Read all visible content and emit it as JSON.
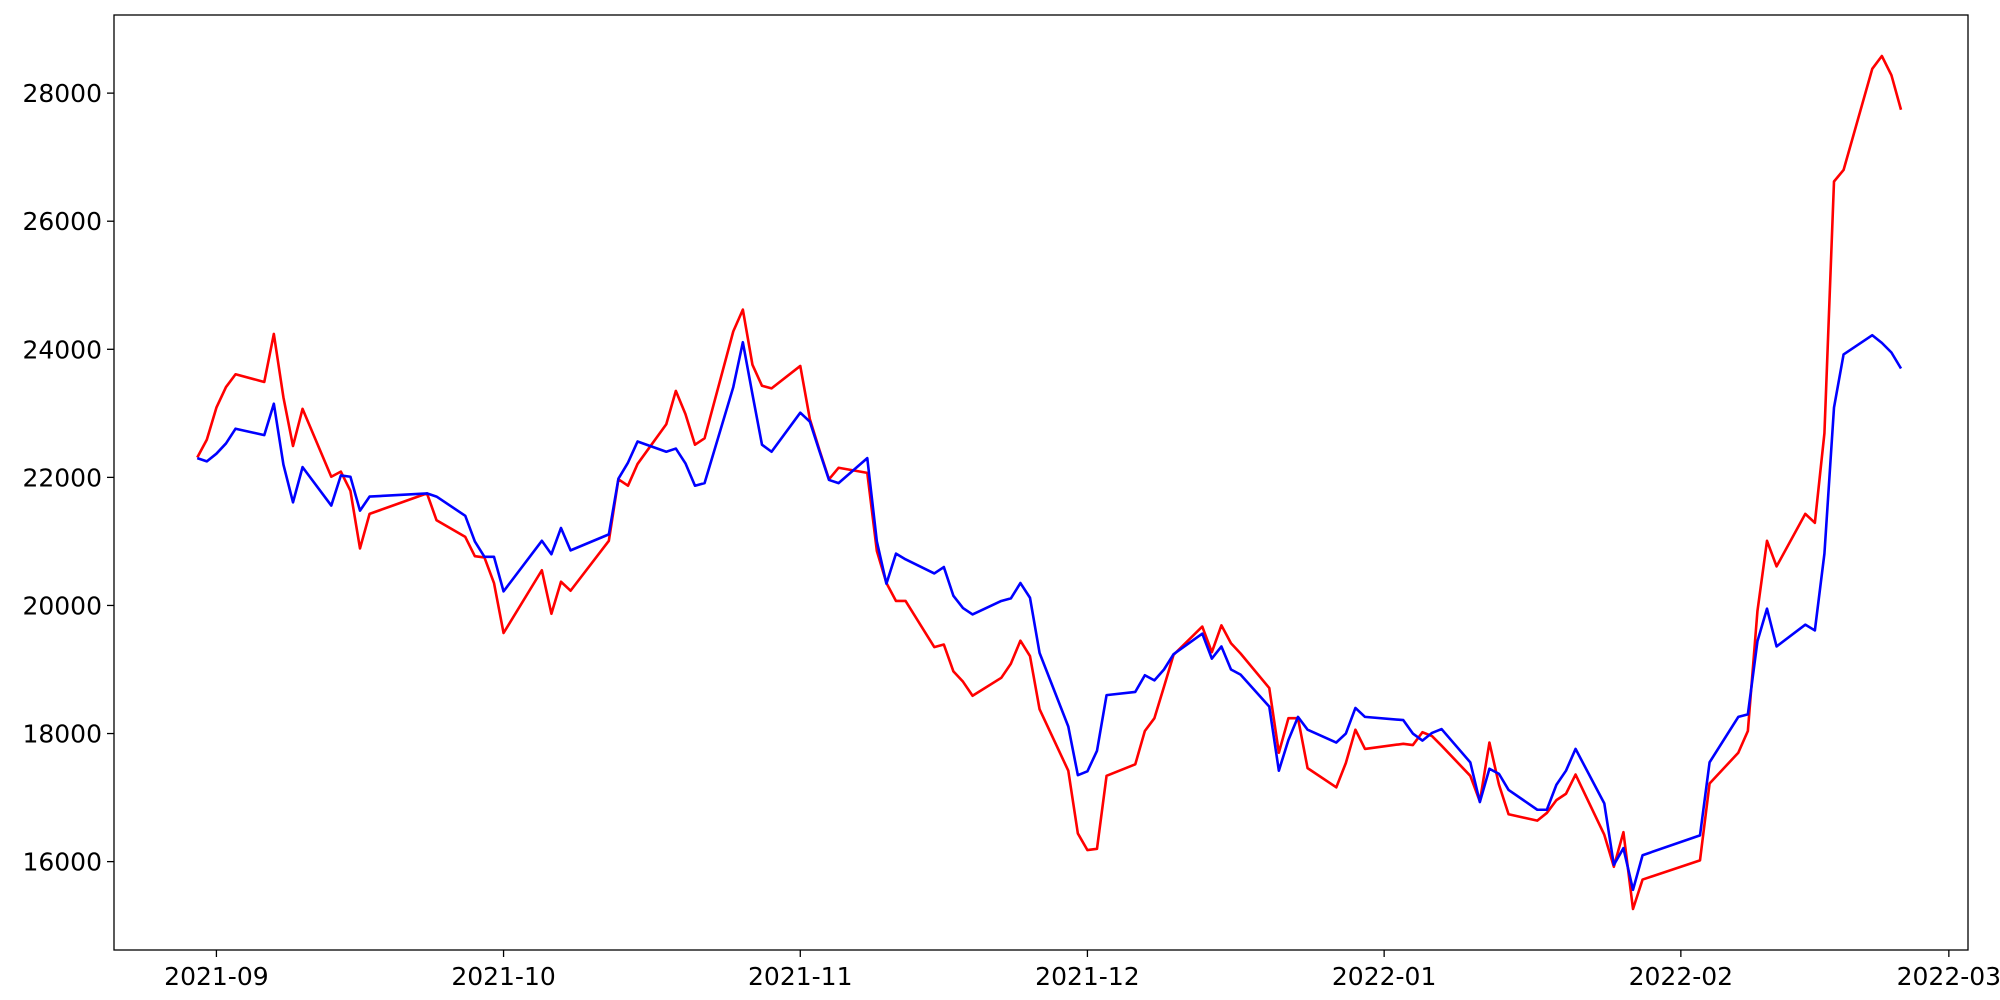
{
  "chart_data": {
    "type": "line",
    "x": [
      18869,
      18870,
      18871,
      18872,
      18873,
      18876,
      18877,
      18878,
      18879,
      18880,
      18883,
      18884,
      18885,
      18886,
      18887,
      18893,
      18894,
      18897,
      18898,
      18899,
      18900,
      18901,
      18905,
      18906,
      18907,
      18908,
      18912,
      18913,
      18914,
      18915,
      18918,
      18919,
      18920,
      18921,
      18922,
      18925,
      18926,
      18927,
      18928,
      18929,
      18932,
      18933,
      18934,
      18935,
      18936,
      18939,
      18940,
      18941,
      18942,
      18943,
      18946,
      18947,
      18948,
      18949,
      18950,
      18953,
      18954,
      18955,
      18956,
      18957,
      18960,
      18961,
      18962,
      18963,
      18964,
      18967,
      18968,
      18969,
      18970,
      18971,
      18974,
      18975,
      18976,
      18977,
      18978,
      18981,
      18982,
      18983,
      18984,
      18985,
      18988,
      18989,
      18990,
      18991,
      18995,
      18996,
      18997,
      18998,
      18999,
      19002,
      19003,
      19004,
      19005,
      19006,
      19009,
      19010,
      19011,
      19012,
      19013,
      19016,
      19017,
      19018,
      19019,
      19020,
      19026,
      19027,
      19030,
      19031,
      19032,
      19033,
      19034,
      19037,
      19038,
      19039,
      19040,
      19041,
      19044,
      19045,
      19046,
      19047
    ],
    "series": [
      {
        "color": "#ff0000",
        "values": [
          22310,
          22590,
          23090,
          23410,
          23610,
          23490,
          24240,
          23250,
          22490,
          23070,
          22010,
          22090,
          21790,
          20890,
          21430,
          21750,
          21330,
          21070,
          20770,
          20750,
          20350,
          19570,
          20550,
          19870,
          20370,
          20230,
          21010,
          21970,
          21870,
          22210,
          22830,
          23350,
          22990,
          22510,
          22610,
          24280,
          24620,
          23760,
          23430,
          23390,
          23740,
          22910,
          22430,
          21970,
          22150,
          22070,
          20850,
          20350,
          20070,
          20070,
          19350,
          19390,
          18970,
          18810,
          18590,
          18870,
          19090,
          19450,
          19210,
          18380,
          17420,
          16440,
          16180,
          16200,
          17340,
          17520,
          18040,
          18240,
          18730,
          19230,
          19670,
          19270,
          19690,
          19410,
          19250,
          18710,
          17700,
          18240,
          18240,
          17460,
          17160,
          17540,
          18060,
          17760,
          17840,
          17820,
          18020,
          17960,
          17810,
          17340,
          16940,
          17860,
          17200,
          16740,
          16640,
          16760,
          16960,
          17060,
          17360,
          16420,
          15920,
          16460,
          15260,
          15720,
          16020,
          17220,
          17700,
          18040,
          19910,
          21010,
          20610,
          21430,
          21290,
          22690,
          26620,
          26800,
          28380,
          28580,
          28280,
          27740
        ]
      },
      {
        "color": "#0000ff",
        "values": [
          22300,
          22250,
          22370,
          22530,
          22760,
          22660,
          23150,
          22200,
          21610,
          22160,
          21560,
          22030,
          22010,
          21480,
          21700,
          21750,
          21700,
          21400,
          21000,
          20760,
          20760,
          20220,
          21010,
          20800,
          21210,
          20860,
          21110,
          21980,
          22230,
          22560,
          22400,
          22450,
          22220,
          21870,
          21910,
          23410,
          24110,
          23300,
          22510,
          22400,
          23010,
          22870,
          22410,
          21960,
          21910,
          22300,
          21000,
          20340,
          20810,
          20720,
          20500,
          20600,
          20150,
          19960,
          19860,
          20070,
          20110,
          20350,
          20120,
          19260,
          18110,
          17350,
          17410,
          17730,
          18600,
          18650,
          18910,
          18830,
          19000,
          19240,
          19560,
          19170,
          19360,
          19000,
          18920,
          18420,
          17420,
          17900,
          18260,
          18060,
          17860,
          18000,
          18400,
          18260,
          18210,
          18000,
          17890,
          18010,
          18070,
          17550,
          16930,
          17450,
          17370,
          17120,
          16810,
          16810,
          17200,
          17420,
          17760,
          16910,
          15950,
          16210,
          15560,
          16100,
          16410,
          17550,
          18260,
          18300,
          19440,
          19950,
          19360,
          19700,
          19610,
          20810,
          23090,
          23920,
          24220,
          24100,
          23950,
          23700
        ]
      }
    ],
    "xlim": [
      18860.3,
      19054.0
    ],
    "xticks": [
      {
        "value": 18871,
        "label": "2021-09"
      },
      {
        "value": 18901,
        "label": "2021-10"
      },
      {
        "value": 18932,
        "label": "2021-11"
      },
      {
        "value": 18962,
        "label": "2021-12"
      },
      {
        "value": 18993,
        "label": "2022-01"
      },
      {
        "value": 19024,
        "label": "2022-02"
      },
      {
        "value": 19052,
        "label": "2022-03"
      }
    ],
    "ylim": [
      14620,
      29220
    ],
    "yticks": [
      16000,
      18000,
      20000,
      22000,
      24000,
      26000,
      28000
    ]
  }
}
